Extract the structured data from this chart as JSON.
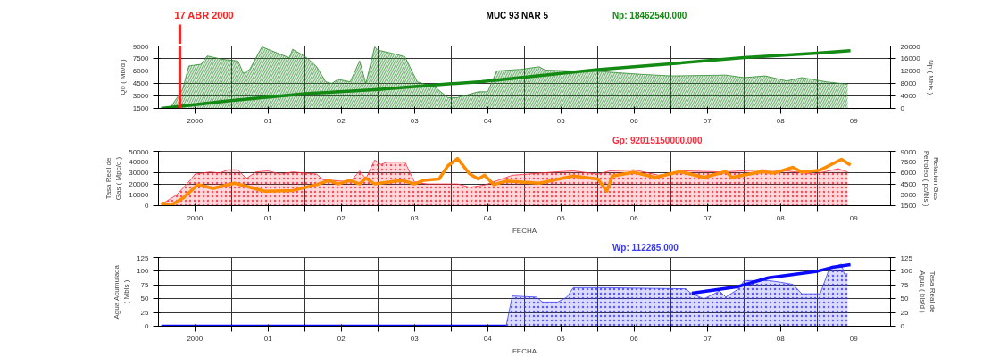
{
  "chart_data": [
    {
      "type": "area",
      "title": "MUC 93 NAR 5",
      "ylabel": "Qo ( Mb/d )",
      "y2label": "Np ( Mbls )",
      "xlim": [
        "2000-01-01",
        "2010-01-01"
      ],
      "xticks": [
        {
          "value": "2000-07-01",
          "label": "2000"
        },
        {
          "value": "2001-01-01",
          "label": null
        },
        {
          "value": "2001-07-01",
          "label": "01"
        },
        {
          "value": "2002-01-01",
          "label": null
        },
        {
          "value": "2002-07-01",
          "label": "02"
        },
        {
          "value": "2003-01-01",
          "label": null
        },
        {
          "value": "2003-07-01",
          "label": "03"
        },
        {
          "value": "2004-01-01",
          "label": null
        },
        {
          "value": "2004-07-01",
          "label": "04"
        },
        {
          "value": "2005-01-01",
          "label": null
        },
        {
          "value": "2005-07-01",
          "label": "05"
        },
        {
          "value": "2006-01-01",
          "label": null
        },
        {
          "value": "2006-07-01",
          "label": "06"
        },
        {
          "value": "2007-01-01",
          "label": null
        },
        {
          "value": "2007-07-01",
          "label": "07"
        },
        {
          "value": "2008-01-01",
          "label": null
        },
        {
          "value": "2008-07-01",
          "label": "08"
        },
        {
          "value": "2009-01-01",
          "label": null
        },
        {
          "value": "2009-07-01",
          "label": "09"
        }
      ],
      "ylim": [
        1500,
        9000
      ],
      "yticks": [
        1500,
        3000,
        4500,
        6000,
        7500,
        9000
      ],
      "y2lim": [
        0,
        20000
      ],
      "y2ticks": [
        0,
        4000,
        8000,
        12000,
        16000,
        20000
      ],
      "grid": true,
      "annotations": [
        "Np:     18462540.000"
      ],
      "ref_lines": [
        {
          "axis": "x",
          "value": "2000-04-17",
          "label": "17 ABR 2000",
          "color": "#ff2020"
        }
      ],
      "series": [
        {
          "color": "#2e8b2e",
          "x": [
            "2000-01-15",
            "2000-03-01",
            "2000-05-01",
            "2000-06-01",
            "2000-08-01",
            "2000-09-01",
            "2000-11-15",
            "2001-02-01",
            "2001-03-01",
            "2001-04-01",
            "2001-06-01",
            "2001-09-01",
            "2001-10-15",
            "2001-11-01",
            "2001-12-15",
            "2002-01-15",
            "2002-03-01",
            "2002-04-15",
            "2002-05-15",
            "2002-06-15",
            "2002-08-15",
            "2002-10-01",
            "2002-11-01",
            "2002-12-15",
            "2003-01-01",
            "2003-04-01",
            "2003-05-15",
            "2003-07-15",
            "2003-10-15",
            "2003-12-15",
            "2004-02-01",
            "2004-05-15",
            "2004-07-01",
            "2004-08-15",
            "2004-12-15",
            "2005-03-15",
            "2005-04-15",
            "2006-02-01",
            "2006-08-01",
            "2007-01-01",
            "2007-10-01",
            "2008-01-01",
            "2008-04-15",
            "2008-08-01",
            "2008-10-15",
            "2009-02-15",
            "2009-06-01"
          ],
          "values": [
            1500,
            1600,
            3800,
            6600,
            6800,
            7800,
            7400,
            7200,
            5700,
            6200,
            8900,
            8000,
            7600,
            8600,
            8000,
            7500,
            6500,
            4700,
            4500,
            5000,
            4700,
            7200,
            4500,
            8900,
            8500,
            8000,
            7700,
            4700,
            4000,
            2800,
            2800,
            3500,
            3500,
            6000,
            6200,
            6500,
            6100,
            5900,
            5600,
            5400,
            5500,
            5200,
            5400,
            4800,
            5200,
            4700,
            4400
          ]
        },
        {
          "type": "line",
          "axis": "y2",
          "color": "#138a13",
          "x": [
            "2000-01-15",
            "2000-12-15",
            "2002-01-01",
            "2003-01-01",
            "2004-01-01",
            "2004-06-01",
            "2006-01-01",
            "2007-01-01",
            "2008-01-01",
            "2009-01-01",
            "2009-06-15"
          ],
          "values": [
            0,
            2400,
            4700,
            6100,
            7900,
            8600,
            12400,
            14300,
            16300,
            17700,
            18500
          ]
        }
      ]
    },
    {
      "type": "area",
      "xlabel": "FECHA",
      "ylabel": "Tasa Real de Gas ( Mpc/d )",
      "y2label": "Relacion Gas Petroleo ( pc/bls )",
      "xlim": [
        "2000-01-01",
        "2010-01-01"
      ],
      "xticks": [
        {
          "value": "2000-07-01",
          "label": "2000"
        },
        {
          "value": "2001-01-01",
          "label": null
        },
        {
          "value": "2001-07-01",
          "label": "01"
        },
        {
          "value": "2002-01-01",
          "label": null
        },
        {
          "value": "2002-07-01",
          "label": "02"
        },
        {
          "value": "2003-01-01",
          "label": null
        },
        {
          "value": "2003-07-01",
          "label": "03"
        },
        {
          "value": "2004-01-01",
          "label": null
        },
        {
          "value": "2004-07-01",
          "label": "04"
        },
        {
          "value": "2005-01-01",
          "label": null
        },
        {
          "value": "2005-07-01",
          "label": "05"
        },
        {
          "value": "2006-01-01",
          "label": null
        },
        {
          "value": "2006-07-01",
          "label": "06"
        },
        {
          "value": "2007-01-01",
          "label": null
        },
        {
          "value": "2007-07-01",
          "label": "07"
        },
        {
          "value": "2008-01-01",
          "label": null
        },
        {
          "value": "2008-07-01",
          "label": "08"
        },
        {
          "value": "2009-01-01",
          "label": null
        },
        {
          "value": "2009-07-01",
          "label": "09"
        }
      ],
      "ylim": [
        0,
        50000
      ],
      "yticks": [
        0,
        10000,
        20000,
        30000,
        40000,
        50000
      ],
      "y2lim": [
        1500,
        9000
      ],
      "y2ticks": [
        1500,
        3000,
        4500,
        6000,
        7500,
        9000
      ],
      "grid": true,
      "annotations": [
        "Gp:     92015150000.000"
      ],
      "series": [
        {
          "color": "#ff2a3a",
          "x": [
            "2000-01-15",
            "2000-04-01",
            "2000-06-15",
            "2000-07-01",
            "2000-09-15",
            "2000-11-01",
            "2000-12-15",
            "2001-02-01",
            "2001-03-15",
            "2001-05-01",
            "2001-07-01",
            "2001-09-01",
            "2001-11-01",
            "2002-01-01",
            "2002-03-01",
            "2002-04-01",
            "2002-08-15",
            "2002-10-01",
            "2002-11-01",
            "2002-12-15",
            "2003-01-15",
            "2003-02-15",
            "2003-05-15",
            "2003-07-01",
            "2003-09-01",
            "2004-02-01",
            "2004-04-01",
            "2004-06-15",
            "2004-11-01",
            "2005-06-01",
            "2005-09-01",
            "2006-01-01",
            "2006-03-01",
            "2006-07-01",
            "2006-11-01",
            "2007-03-15",
            "2007-09-15",
            "2008-04-01",
            "2008-08-01",
            "2008-12-15",
            "2009-04-15",
            "2009-06-01"
          ],
          "values": [
            1000,
            10000,
            25000,
            29000,
            31000,
            30000,
            33000,
            33000,
            25000,
            31000,
            32000,
            29000,
            31000,
            30000,
            29000,
            24000,
            22000,
            32000,
            25000,
            42000,
            38000,
            40000,
            40000,
            22000,
            20000,
            20000,
            17000,
            19000,
            28000,
            31000,
            32000,
            29000,
            32000,
            33000,
            28000,
            32000,
            31000,
            33000,
            32000,
            29000,
            34000,
            31000
          ]
        },
        {
          "type": "line",
          "axis": "y2",
          "color": "#ff8c00",
          "x": [
            "2000-01-15",
            "2000-03-01",
            "2000-05-01",
            "2000-07-15",
            "2000-10-01",
            "2001-01-15",
            "2001-06-15",
            "2001-11-01",
            "2002-03-01",
            "2002-05-01",
            "2002-06-15",
            "2002-08-15",
            "2002-10-01",
            "2002-11-01",
            "2002-12-15",
            "2003-05-01",
            "2003-07-01",
            "2003-08-15",
            "2003-11-01",
            "2003-12-15",
            "2004-02-01",
            "2004-04-01",
            "2004-05-15",
            "2004-06-15",
            "2004-08-01",
            "2004-10-01",
            "2005-03-15",
            "2005-09-01",
            "2006-01-01",
            "2006-02-15",
            "2006-03-15",
            "2006-07-01",
            "2006-10-15",
            "2007-02-15",
            "2007-06-15",
            "2007-10-01",
            "2007-11-01",
            "2008-04-01",
            "2008-06-01",
            "2008-09-01",
            "2008-10-15",
            "2009-01-15",
            "2009-05-01",
            "2009-06-15"
          ],
          "values": [
            1900,
            1500,
            2500,
            4400,
            3900,
            4600,
            3500,
            3600,
            4400,
            5000,
            4500,
            5000,
            4500,
            5300,
            4500,
            5000,
            4500,
            5000,
            5200,
            7000,
            8000,
            5900,
            5200,
            5700,
            4400,
            4900,
            4600,
            5600,
            5200,
            3500,
            5600,
            6100,
            5400,
            6200,
            5400,
            6200,
            5400,
            6200,
            6000,
            6800,
            6100,
            6400,
            7900,
            7100
          ]
        }
      ]
    },
    {
      "type": "area",
      "xlabel": "FECHA",
      "ylabel": "Agua Acumulada ( Mbls )",
      "y2label": "Tasa Real de Agua ( bls/d )",
      "xlim": [
        "2000-01-01",
        "2010-01-01"
      ],
      "xticks": [
        {
          "value": "2000-07-01",
          "label": "2000"
        },
        {
          "value": "2001-01-01",
          "label": null
        },
        {
          "value": "2001-07-01",
          "label": "01"
        },
        {
          "value": "2002-01-01",
          "label": null
        },
        {
          "value": "2002-07-01",
          "label": "02"
        },
        {
          "value": "2003-01-01",
          "label": null
        },
        {
          "value": "2003-07-01",
          "label": "03"
        },
        {
          "value": "2004-01-01",
          "label": null
        },
        {
          "value": "2004-07-01",
          "label": "04"
        },
        {
          "value": "2005-01-01",
          "label": null
        },
        {
          "value": "2005-07-01",
          "label": "05"
        },
        {
          "value": "2006-01-01",
          "label": null
        },
        {
          "value": "2006-07-01",
          "label": "06"
        },
        {
          "value": "2007-01-01",
          "label": null
        },
        {
          "value": "2007-07-01",
          "label": "07"
        },
        {
          "value": "2008-01-01",
          "label": null
        },
        {
          "value": "2008-07-01",
          "label": "08"
        },
        {
          "value": "2009-01-01",
          "label": null
        },
        {
          "value": "2009-07-01",
          "label": "09"
        }
      ],
      "ylim": [
        0,
        125
      ],
      "yticks": [
        0,
        25,
        50,
        75,
        100,
        125
      ],
      "y2lim": [
        0,
        125
      ],
      "y2ticks": [
        0,
        25,
        50,
        75,
        100,
        125
      ],
      "grid": true,
      "annotations": [
        "Wp:     112285.000"
      ],
      "series": [
        {
          "axis": "y2",
          "color": "#3a3aff",
          "x": [
            "2004-10-01",
            "2004-11-01",
            "2005-03-01",
            "2005-04-01",
            "2005-06-15",
            "2005-08-01",
            "2005-09-01",
            "2006-02-15",
            "2007-03-15",
            "2007-04-15",
            "2007-06-15",
            "2007-09-01",
            "2007-10-01",
            "2007-12-01",
            "2008-01-01",
            "2008-05-01",
            "2008-07-01",
            "2008-09-01",
            "2008-10-15",
            "2009-01-15",
            "2009-03-01",
            "2009-05-01",
            "2009-05-15",
            "2009-06-01"
          ],
          "values": [
            0,
            55,
            53,
            44,
            44,
            53,
            70,
            70,
            68,
            59,
            50,
            64,
            53,
            67,
            83,
            83,
            80,
            76,
            59,
            59,
            104,
            113,
            95,
            95
          ]
        },
        {
          "type": "line",
          "color": "#0a0aff",
          "x": [
            "2000-01-15",
            "2004-10-01",
            "2005-07-01",
            "2007-04-15",
            "2007-12-01",
            "2008-05-01",
            "2009-01-01",
            "2009-03-15",
            "2009-06-15"
          ],
          "values": [
            0,
            0,
            null,
            60,
            72,
            88,
            100,
            107,
            112
          ]
        }
      ]
    }
  ]
}
